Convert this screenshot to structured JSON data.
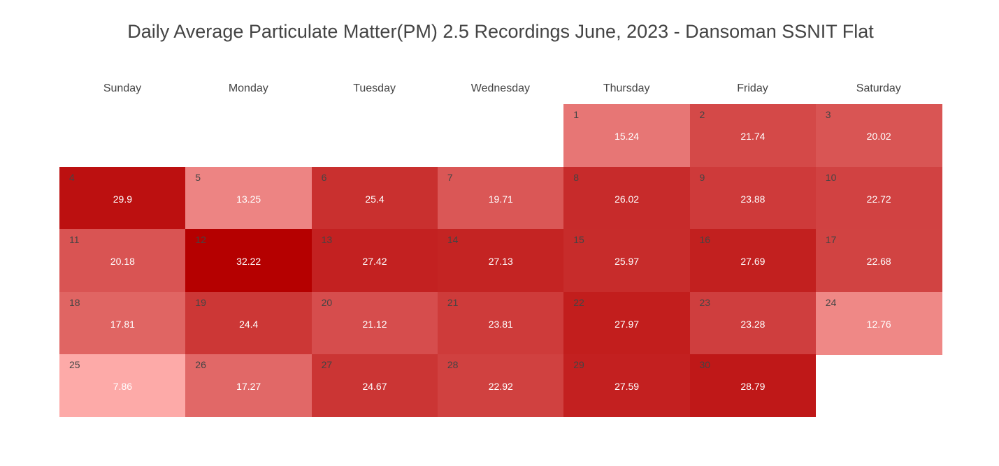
{
  "chart_data": {
    "type": "heatmap",
    "title": "Daily Average Particulate Matter(PM) 2.5 Recordings June, 2023 - Dansoman SSNIT Flat",
    "weekdays": [
      "Sunday",
      "Monday",
      "Tuesday",
      "Wednesday",
      "Thursday",
      "Friday",
      "Saturday"
    ],
    "first_weekday_index": 4,
    "color_scale": {
      "low": "#fdaaa8",
      "high": "#b50000"
    },
    "days": [
      {
        "day": 1,
        "value": 15.24
      },
      {
        "day": 2,
        "value": 21.74
      },
      {
        "day": 3,
        "value": 20.02
      },
      {
        "day": 4,
        "value": 29.9
      },
      {
        "day": 5,
        "value": 13.25
      },
      {
        "day": 6,
        "value": 25.4
      },
      {
        "day": 7,
        "value": 19.71
      },
      {
        "day": 8,
        "value": 26.02
      },
      {
        "day": 9,
        "value": 23.88
      },
      {
        "day": 10,
        "value": 22.72
      },
      {
        "day": 11,
        "value": 20.18
      },
      {
        "day": 12,
        "value": 32.22
      },
      {
        "day": 13,
        "value": 27.42
      },
      {
        "day": 14,
        "value": 27.13
      },
      {
        "day": 15,
        "value": 25.97
      },
      {
        "day": 16,
        "value": 27.69
      },
      {
        "day": 17,
        "value": 22.68
      },
      {
        "day": 18,
        "value": 17.81
      },
      {
        "day": 19,
        "value": 24.4
      },
      {
        "day": 20,
        "value": 21.12
      },
      {
        "day": 21,
        "value": 23.81
      },
      {
        "day": 22,
        "value": 27.97
      },
      {
        "day": 23,
        "value": 23.28
      },
      {
        "day": 24,
        "value": 12.76
      },
      {
        "day": 25,
        "value": 7.86
      },
      {
        "day": 26,
        "value": 17.27
      },
      {
        "day": 27,
        "value": 24.67
      },
      {
        "day": 28,
        "value": 22.92
      },
      {
        "day": 29,
        "value": 27.59
      },
      {
        "day": 30,
        "value": 28.79
      }
    ]
  }
}
